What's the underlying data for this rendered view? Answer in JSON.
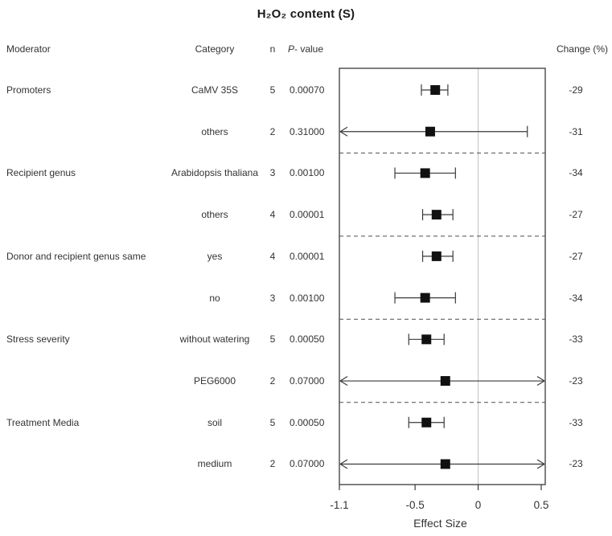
{
  "title": "H₂O₂ content (S)",
  "columns": {
    "moderator": "Moderator",
    "category": "Category",
    "n": "n",
    "p_italic": "P",
    "p_rest": "- value",
    "change": "Change (%)"
  },
  "chart_data": {
    "type": "forest",
    "title": "H₂O₂ content (S)",
    "xlabel": "Effect Size",
    "xlim": [
      -1.1,
      0.55
    ],
    "ticks": [
      "-1.1",
      "-0.5",
      "0",
      "0.5"
    ],
    "tick_values": [
      -1.1,
      -0.5,
      0,
      0.5
    ],
    "zero_line": 0,
    "grid": false,
    "group_separators_after": [
      1,
      3,
      5,
      7
    ],
    "rows": [
      {
        "moderator": "Promoters",
        "category": "CaMV 35S",
        "n": "5",
        "p_value": "0.00070",
        "effect": -0.34,
        "ci_low": -0.45,
        "ci_high": -0.24,
        "clip_low": false,
        "clip_high": false,
        "change": "-29"
      },
      {
        "moderator": "",
        "category": "others",
        "n": "2",
        "p_value": "0.31000",
        "effect": -0.38,
        "ci_low": -1.1,
        "ci_high": 0.39,
        "clip_low": true,
        "clip_high": false,
        "change": "-31"
      },
      {
        "moderator": "Recipient genus",
        "category": "Arabidopsis thaliana",
        "n": "3",
        "p_value": "0.00100",
        "effect": -0.42,
        "ci_low": -0.66,
        "ci_high": -0.18,
        "clip_low": false,
        "clip_high": false,
        "change": "-34"
      },
      {
        "moderator": "",
        "category": "others",
        "n": "4",
        "p_value": "0.00001",
        "effect": -0.33,
        "ci_low": -0.44,
        "ci_high": -0.2,
        "clip_low": false,
        "clip_high": false,
        "change": "-27"
      },
      {
        "moderator": "Donor and recipient genus same",
        "category": "yes",
        "n": "4",
        "p_value": "0.00001",
        "effect": -0.33,
        "ci_low": -0.44,
        "ci_high": -0.2,
        "clip_low": false,
        "clip_high": false,
        "change": "-27"
      },
      {
        "moderator": "",
        "category": "no",
        "n": "3",
        "p_value": "0.00100",
        "effect": -0.42,
        "ci_low": -0.66,
        "ci_high": -0.18,
        "clip_low": false,
        "clip_high": false,
        "change": "-34"
      },
      {
        "moderator": "Stress severity",
        "category": "without watering",
        "n": "5",
        "p_value": "0.00050",
        "effect": -0.41,
        "ci_low": -0.55,
        "ci_high": -0.27,
        "clip_low": false,
        "clip_high": false,
        "change": "-33"
      },
      {
        "moderator": "",
        "category": "PEG6000",
        "n": "2",
        "p_value": "0.07000",
        "effect": -0.26,
        "ci_low": -1.1,
        "ci_high": 0.55,
        "clip_low": true,
        "clip_high": true,
        "change": "-23"
      },
      {
        "moderator": "Treatment Media",
        "category": "soil",
        "n": "5",
        "p_value": "0.00050",
        "effect": -0.41,
        "ci_low": -0.55,
        "ci_high": -0.27,
        "clip_low": false,
        "clip_high": false,
        "change": "-33"
      },
      {
        "moderator": "",
        "category": "medium",
        "n": "2",
        "p_value": "0.07000",
        "effect": -0.26,
        "ci_low": -1.1,
        "ci_high": 0.55,
        "clip_low": true,
        "clip_high": true,
        "change": "-23"
      }
    ],
    "colors": {
      "line": "#3a3a3a",
      "marker": "#111111",
      "box_border": "#3a3a3a",
      "zero_line": "#c9c9c9",
      "separator": "#4d4d4d",
      "text": "#333333"
    }
  }
}
